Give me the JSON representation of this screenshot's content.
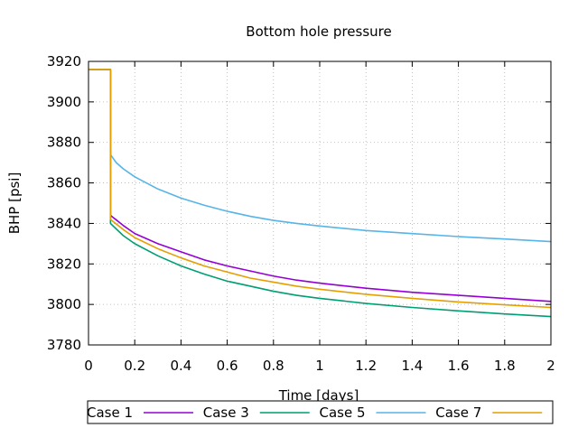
{
  "chart_data": {
    "type": "line",
    "title": "Bottom hole pressure",
    "xlabel": "Time [days]",
    "ylabel": "BHP [psi]",
    "xlim": [
      0,
      2
    ],
    "ylim": [
      3780,
      3920
    ],
    "x_ticks": [
      "0",
      "0.2",
      "0.4",
      "0.6",
      "0.8",
      "1",
      "1.2",
      "1.4",
      "1.6",
      "1.8",
      "2"
    ],
    "y_ticks": [
      "3780",
      "3800",
      "3820",
      "3840",
      "3860",
      "3880",
      "3900",
      "3920"
    ],
    "grid": true,
    "legend_position": "bottom",
    "series": [
      {
        "name": "Case 1",
        "color": "#9400d3",
        "points": [
          [
            0,
            3916
          ],
          [
            0.09,
            3916
          ],
          [
            0.095,
            3916
          ],
          [
            0.095,
            3844
          ],
          [
            0.15,
            3839
          ],
          [
            0.2,
            3835
          ],
          [
            0.3,
            3830
          ],
          [
            0.4,
            3826
          ],
          [
            0.5,
            3822
          ],
          [
            0.6,
            3819
          ],
          [
            0.7,
            3816.5
          ],
          [
            0.8,
            3814
          ],
          [
            0.9,
            3812
          ],
          [
            1.0,
            3810.5
          ],
          [
            1.2,
            3808
          ],
          [
            1.4,
            3806
          ],
          [
            1.6,
            3804.5
          ],
          [
            1.8,
            3803
          ],
          [
            2.0,
            3801.5
          ]
        ]
      },
      {
        "name": "Case 3",
        "color": "#009e73",
        "points": [
          [
            0,
            3916
          ],
          [
            0.09,
            3916
          ],
          [
            0.095,
            3916
          ],
          [
            0.095,
            3840
          ],
          [
            0.15,
            3834
          ],
          [
            0.2,
            3830
          ],
          [
            0.3,
            3824
          ],
          [
            0.4,
            3819
          ],
          [
            0.5,
            3815
          ],
          [
            0.6,
            3811.5
          ],
          [
            0.7,
            3809
          ],
          [
            0.8,
            3806.5
          ],
          [
            0.9,
            3804.5
          ],
          [
            1.0,
            3803
          ],
          [
            1.2,
            3800.5
          ],
          [
            1.4,
            3798.5
          ],
          [
            1.6,
            3796.8
          ],
          [
            1.8,
            3795.3
          ],
          [
            2.0,
            3794
          ]
        ]
      },
      {
        "name": "Case 5",
        "color": "#56b4e9",
        "points": [
          [
            0,
            3916
          ],
          [
            0.09,
            3916
          ],
          [
            0.095,
            3916
          ],
          [
            0.095,
            3874
          ],
          [
            0.12,
            3870
          ],
          [
            0.15,
            3867
          ],
          [
            0.2,
            3863
          ],
          [
            0.3,
            3857
          ],
          [
            0.4,
            3852.5
          ],
          [
            0.5,
            3849
          ],
          [
            0.6,
            3846
          ],
          [
            0.7,
            3843.5
          ],
          [
            0.8,
            3841.5
          ],
          [
            0.9,
            3840
          ],
          [
            1.0,
            3838.7
          ],
          [
            1.2,
            3836.5
          ],
          [
            1.4,
            3835
          ],
          [
            1.6,
            3833.5
          ],
          [
            1.8,
            3832.3
          ],
          [
            2.0,
            3831
          ]
        ]
      },
      {
        "name": "Case 7",
        "color": "#e69f00",
        "points": [
          [
            0,
            3916
          ],
          [
            0.09,
            3916
          ],
          [
            0.095,
            3916
          ],
          [
            0.095,
            3842
          ],
          [
            0.15,
            3837
          ],
          [
            0.2,
            3833
          ],
          [
            0.3,
            3827.5
          ],
          [
            0.4,
            3823
          ],
          [
            0.5,
            3819
          ],
          [
            0.6,
            3816
          ],
          [
            0.7,
            3813
          ],
          [
            0.8,
            3811
          ],
          [
            0.9,
            3809
          ],
          [
            1.0,
            3807.5
          ],
          [
            1.2,
            3805
          ],
          [
            1.4,
            3803
          ],
          [
            1.6,
            3801.2
          ],
          [
            1.8,
            3799.8
          ],
          [
            2.0,
            3798.5
          ]
        ]
      }
    ]
  }
}
